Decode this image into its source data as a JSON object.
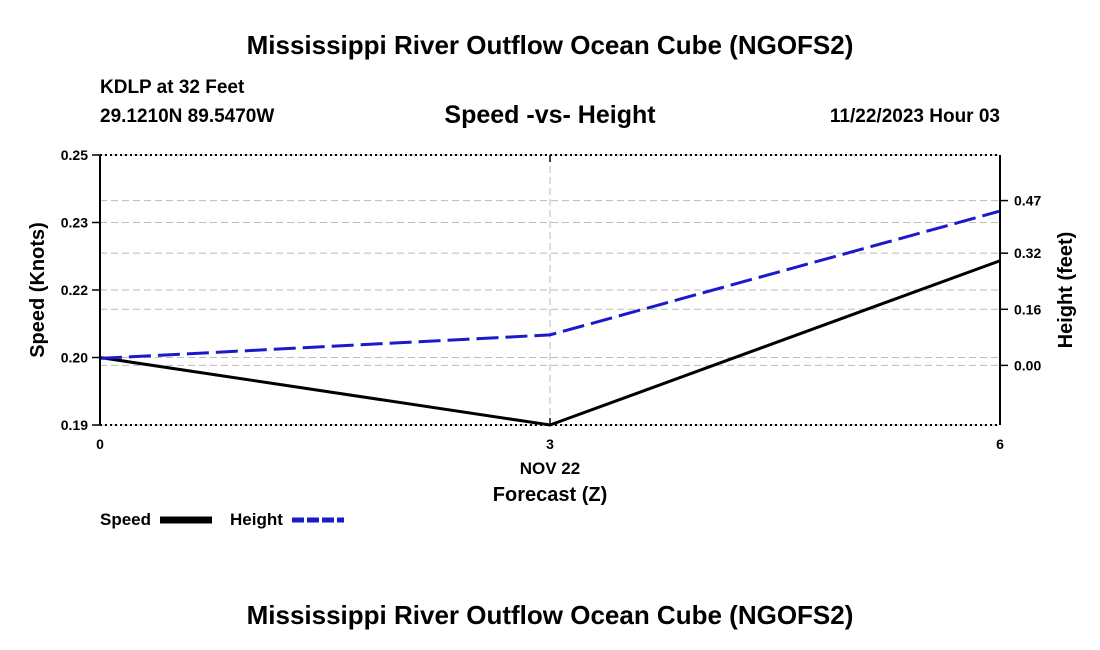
{
  "header": {
    "title_top": "Mississippi River Outflow Ocean Cube (NGOFS2)",
    "station": "KDLP at 32 Feet",
    "coords": "29.1210N  89.5470W",
    "subtitle": "Speed -vs- Height",
    "datetime": "11/22/2023 Hour 03",
    "title_bottom": "Mississippi River Outflow Ocean Cube (NGOFS2)"
  },
  "chart_data": {
    "type": "line",
    "title": "Speed -vs- Height",
    "x": [
      0,
      3,
      6
    ],
    "xlim": [
      0,
      6
    ],
    "xticks": [
      {
        "value": 0,
        "label": "0"
      },
      {
        "value": 3,
        "label": "3"
      },
      {
        "value": 6,
        "label": "6"
      }
    ],
    "xdate_label": "NOV 22",
    "xlabel": "Forecast (Z)",
    "left_axis": {
      "label": "Speed (Knots)",
      "ylim": [
        0.19,
        0.25
      ],
      "ticks": [
        {
          "value": 0.19,
          "label": "0.19"
        },
        {
          "value": 0.205,
          "label": "0.20"
        },
        {
          "value": 0.22,
          "label": "0.22"
        },
        {
          "value": 0.235,
          "label": "0.23"
        },
        {
          "value": 0.25,
          "label": "0.25"
        }
      ]
    },
    "right_axis": {
      "label": "Height (feet)",
      "ylim": [
        -0.17,
        0.6
      ],
      "ticks": [
        {
          "value": 0.0,
          "label": "0.00"
        },
        {
          "value": 0.16,
          "label": "0.16"
        },
        {
          "value": 0.32,
          "label": "0.32"
        },
        {
          "value": 0.47,
          "label": "0.47"
        }
      ]
    },
    "series": [
      {
        "name": "Speed",
        "axis": "left",
        "color": "#000000",
        "style": "solid",
        "values": [
          0.205,
          0.19,
          0.2265
        ]
      },
      {
        "name": "Height",
        "axis": "right",
        "color": "#1a1acc",
        "style": "dashed",
        "values": [
          0.02,
          0.087,
          0.44
        ]
      }
    ],
    "grid": true,
    "legend": "bottom-left"
  }
}
